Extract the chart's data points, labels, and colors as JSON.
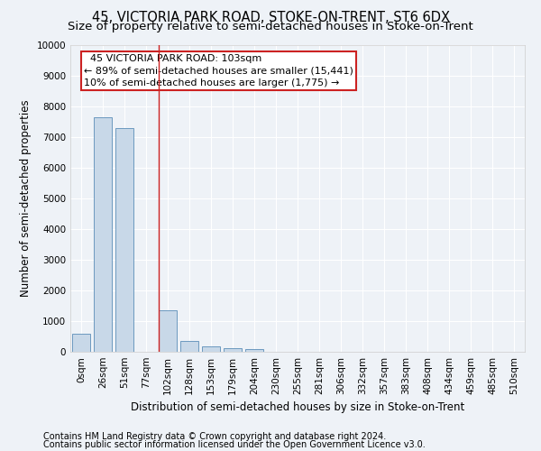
{
  "title": "45, VICTORIA PARK ROAD, STOKE-ON-TRENT, ST6 6DX",
  "subtitle": "Size of property relative to semi-detached houses in Stoke-on-Trent",
  "xlabel": "Distribution of semi-detached houses by size in Stoke-on-Trent",
  "ylabel": "Number of semi-detached properties",
  "footnote1": "Contains HM Land Registry data © Crown copyright and database right 2024.",
  "footnote2": "Contains public sector information licensed under the Open Government Licence v3.0.",
  "bar_labels": [
    "0sqm",
    "26sqm",
    "51sqm",
    "77sqm",
    "102sqm",
    "128sqm",
    "153sqm",
    "179sqm",
    "204sqm",
    "230sqm",
    "255sqm",
    "281sqm",
    "306sqm",
    "332sqm",
    "357sqm",
    "383sqm",
    "408sqm",
    "434sqm",
    "459sqm",
    "485sqm",
    "510sqm"
  ],
  "bar_values": [
    600,
    7650,
    7300,
    0,
    1350,
    350,
    170,
    120,
    90,
    0,
    0,
    0,
    0,
    0,
    0,
    0,
    0,
    0,
    0,
    0,
    0
  ],
  "bar_color": "#c8d8e8",
  "bar_edge_color": "#5b8db8",
  "highlight_line_color": "#cc2222",
  "annotation_text": "  45 VICTORIA PARK ROAD: 103sqm\n← 89% of semi-detached houses are smaller (15,441)\n10% of semi-detached houses are larger (1,775) →",
  "annotation_box_color": "#cc2222",
  "ylim": [
    0,
    10000
  ],
  "yticks": [
    0,
    1000,
    2000,
    3000,
    4000,
    5000,
    6000,
    7000,
    8000,
    9000,
    10000
  ],
  "background_color": "#eef2f7",
  "grid_color": "#ffffff",
  "title_fontsize": 10.5,
  "subtitle_fontsize": 9.5,
  "axis_label_fontsize": 8.5,
  "tick_fontsize": 7.5,
  "annotation_fontsize": 8,
  "footnote_fontsize": 7
}
